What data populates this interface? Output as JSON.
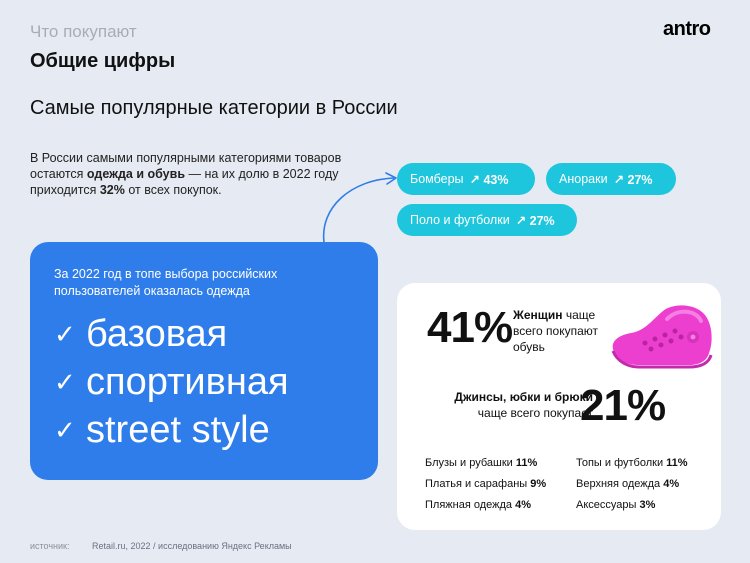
{
  "header": {
    "section_label": "Что покупают",
    "logo": "antro",
    "page_title": "Общие цифры",
    "subtitle": "Самые популярные категории в России"
  },
  "intro": {
    "part1": "В России самыми популярными категориями товаров остаются ",
    "bold1": "одежда и обувь",
    "part2": " — на их долю в 2022 году приходится ",
    "bold2": "32%",
    "part3": " от всех покупок."
  },
  "chips": [
    {
      "label": "Бомберы",
      "value": "↗ 43%"
    },
    {
      "label": "Анораки",
      "value": "↗ 27%"
    },
    {
      "label": "Поло и футболки",
      "value": "↗ 27%"
    }
  ],
  "blue_card": {
    "intro": "За 2022 год в топе выбора российских пользователей оказалась одежда",
    "check": "✓",
    "items": [
      "базовая",
      "спортивная",
      "street style"
    ]
  },
  "white_card": {
    "women_pct": "41%",
    "women_bold": "Женщин",
    "women_rest": " чаще всего покупают обувь",
    "jeans_bold": "Джинсы, юбки и брюки",
    "jeans_rest": "чаще всего покупает",
    "jeans_pct": "21%",
    "left_stats": [
      {
        "label": "Блузы и рубашки ",
        "value": "11%"
      },
      {
        "label": "Платья и сарафаны ",
        "value": "9%"
      },
      {
        "label": "Пляжная одежда ",
        "value": "4%"
      }
    ],
    "right_stats": [
      {
        "label": "Топы и футболки ",
        "value": "11%"
      },
      {
        "label": "Верхняя одежда ",
        "value": "4%"
      },
      {
        "label": "Аксессуары ",
        "value": "3%"
      }
    ]
  },
  "source": {
    "label": "источник:",
    "text": "Retail.ru, 2022 / исследованию Яндекс Рекламы"
  },
  "colors": {
    "background": "#e6ebf3",
    "chip": "#1ec6dd",
    "blue_card": "#2f7deb",
    "arrow": "#2f7deb",
    "croc": "#ec3fd0"
  }
}
